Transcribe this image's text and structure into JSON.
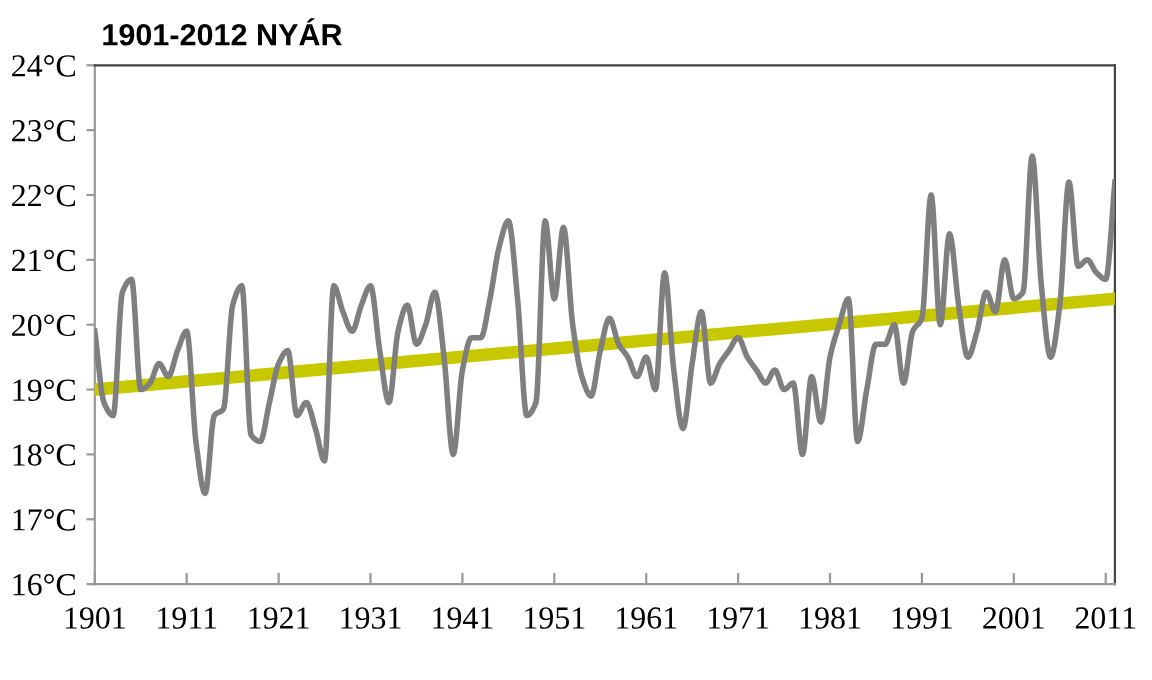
{
  "chart_data": {
    "type": "line",
    "title": "1901-2012 NYÁR",
    "xlim": [
      1901,
      2012
    ],
    "ylim": [
      16,
      24
    ],
    "xticks": [
      1901,
      1911,
      1921,
      1931,
      1941,
      1951,
      1961,
      1971,
      1981,
      1991,
      2001,
      2011
    ],
    "yticks": [
      {
        "value": 16,
        "label": "16°C"
      },
      {
        "value": 17,
        "label": "17°C"
      },
      {
        "value": 18,
        "label": "18°C"
      },
      {
        "value": 19,
        "label": "19°C"
      },
      {
        "value": 20,
        "label": "20°C"
      },
      {
        "value": 21,
        "label": "21°C"
      },
      {
        "value": 22,
        "label": "22°C"
      },
      {
        "value": 23,
        "label": "23°C"
      },
      {
        "value": 24,
        "label": "24°C"
      }
    ],
    "grid": false,
    "legend": false,
    "marker": "none",
    "line_style": "solid",
    "series": [
      {
        "color": "#7f7f7f",
        "x": [
          1901,
          1902,
          1903,
          1904,
          1905,
          1906,
          1907,
          1908,
          1909,
          1910,
          1911,
          1912,
          1913,
          1914,
          1915,
          1916,
          1917,
          1918,
          1919,
          1920,
          1921,
          1922,
          1923,
          1924,
          1925,
          1926,
          1927,
          1928,
          1929,
          1930,
          1931,
          1932,
          1933,
          1934,
          1935,
          1936,
          1937,
          1938,
          1939,
          1940,
          1941,
          1942,
          1943,
          1944,
          1945,
          1946,
          1947,
          1948,
          1949,
          1950,
          1951,
          1952,
          1953,
          1954,
          1955,
          1956,
          1957,
          1958,
          1959,
          1960,
          1961,
          1962,
          1963,
          1964,
          1965,
          1966,
          1967,
          1968,
          1969,
          1970,
          1971,
          1972,
          1973,
          1974,
          1975,
          1976,
          1977,
          1978,
          1979,
          1980,
          1981,
          1982,
          1983,
          1984,
          1985,
          1986,
          1987,
          1988,
          1989,
          1990,
          1991,
          1992,
          1993,
          1994,
          1995,
          1996,
          1997,
          1998,
          1999,
          2000,
          2001,
          2002,
          2003,
          2004,
          2005,
          2006,
          2007,
          2008,
          2009,
          2010,
          2011,
          2012
        ],
        "values": [
          19.9,
          18.8,
          18.6,
          20.5,
          20.7,
          19.0,
          19.1,
          19.4,
          19.2,
          19.6,
          19.9,
          18.2,
          17.4,
          18.6,
          18.7,
          20.3,
          20.6,
          18.3,
          18.2,
          18.8,
          19.4,
          19.6,
          18.6,
          18.8,
          18.4,
          17.9,
          20.6,
          20.2,
          19.9,
          20.3,
          20.6,
          19.6,
          18.8,
          19.9,
          20.3,
          19.7,
          20.0,
          20.5,
          19.5,
          18.0,
          19.3,
          19.8,
          19.8,
          20.4,
          21.2,
          21.6,
          20.4,
          18.6,
          18.8,
          21.6,
          20.4,
          21.5,
          20.0,
          19.2,
          18.9,
          19.6,
          20.1,
          19.7,
          19.5,
          19.2,
          19.5,
          19.0,
          20.8,
          19.3,
          18.4,
          19.4,
          20.2,
          19.1,
          19.4,
          19.6,
          19.8,
          19.5,
          19.3,
          19.1,
          19.3,
          19.0,
          19.1,
          18.0,
          19.2,
          18.5,
          19.5,
          20.0,
          20.4,
          18.2,
          19.0,
          19.7,
          19.7,
          20.0,
          19.1,
          19.9,
          20.1,
          22.0,
          20.0,
          21.4,
          20.3,
          19.5,
          19.9,
          20.5,
          20.2,
          21.0,
          20.4,
          20.5,
          22.6,
          20.6,
          19.5,
          20.3,
          22.2,
          20.9,
          21.0,
          20.8,
          20.7,
          22.2
        ]
      },
      {
        "type": "line",
        "color": "#c8c800",
        "x": [
          1901,
          2012
        ],
        "values": [
          19.0,
          20.4
        ]
      }
    ]
  }
}
